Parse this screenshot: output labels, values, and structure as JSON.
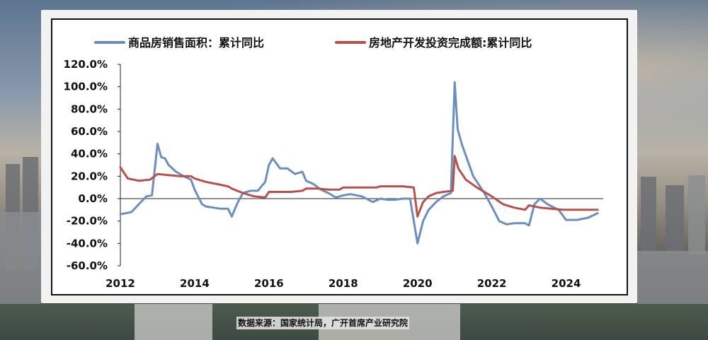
{
  "chart_data": {
    "type": "line",
    "title": "",
    "xlabel": "",
    "ylabel": "",
    "ylim": [
      -60,
      120
    ],
    "xlim": [
      2012,
      2025
    ],
    "y_ticks": [
      "120.0%",
      "100.0%",
      "80.0%",
      "60.0%",
      "40.0%",
      "20.0%",
      "0.0%",
      "-20.0%",
      "-40.0%",
      "-60.0%"
    ],
    "y_tick_values": [
      120,
      100,
      80,
      60,
      40,
      20,
      0,
      -20,
      -40,
      -60
    ],
    "x_ticks": [
      "2012",
      "2014",
      "2016",
      "2018",
      "2020",
      "2022",
      "2024"
    ],
    "x_tick_values": [
      2012,
      2014,
      2016,
      2018,
      2020,
      2022,
      2024
    ],
    "legend_position": "top",
    "zero_line": true,
    "series": [
      {
        "name": "商品房销售面积：累计同比",
        "color": "#6a8fbf",
        "x": [
          2012.0,
          2012.3,
          2012.5,
          2012.7,
          2012.85,
          2013.0,
          2013.1,
          2013.2,
          2013.3,
          2013.5,
          2013.7,
          2013.9,
          2014.0,
          2014.2,
          2014.3,
          2014.5,
          2014.7,
          2014.9,
          2015.0,
          2015.15,
          2015.3,
          2015.5,
          2015.7,
          2015.9,
          2016.0,
          2016.1,
          2016.3,
          2016.5,
          2016.7,
          2016.9,
          2017.0,
          2017.2,
          2017.4,
          2017.6,
          2017.8,
          2018.0,
          2018.2,
          2018.5,
          2018.8,
          2019.0,
          2019.2,
          2019.4,
          2019.6,
          2019.8,
          2020.0,
          2020.15,
          2020.3,
          2020.5,
          2020.7,
          2020.9,
          2021.0,
          2021.08,
          2021.2,
          2021.5,
          2021.8,
          2022.0,
          2022.2,
          2022.4,
          2022.6,
          2022.9,
          2023.0,
          2023.15,
          2023.3,
          2023.5,
          2023.8,
          2024.0,
          2024.3,
          2024.6,
          2024.85
        ],
        "values": [
          -14,
          -12,
          -5,
          2,
          3,
          49,
          37,
          36,
          30,
          24,
          20,
          17,
          8,
          -5,
          -7,
          -8,
          -9,
          -9,
          -16,
          -4,
          5,
          7,
          7,
          15,
          30,
          36,
          27,
          27,
          22,
          24,
          16,
          13,
          8,
          5,
          1,
          3,
          4,
          2,
          -3,
          0,
          -1,
          -1,
          0,
          0,
          -40,
          -20,
          -10,
          -3,
          2,
          5,
          104,
          62,
          48,
          20,
          5,
          -7,
          -20,
          -23,
          -22,
          -22,
          -24,
          -5,
          0,
          -5,
          -10,
          -19,
          -19,
          -17,
          -13
        ]
      },
      {
        "name": "房地产开发投资完成额:累计同比",
        "color": "#b8514c",
        "x": [
          2012.0,
          2012.2,
          2012.5,
          2012.8,
          2013.0,
          2013.3,
          2013.6,
          2013.9,
          2014.0,
          2014.3,
          2014.6,
          2014.9,
          2015.0,
          2015.3,
          2015.6,
          2015.9,
          2016.0,
          2016.3,
          2016.6,
          2016.9,
          2017.0,
          2017.3,
          2017.6,
          2017.9,
          2018.0,
          2018.3,
          2018.6,
          2018.9,
          2019.0,
          2019.3,
          2019.6,
          2019.9,
          2020.0,
          2020.15,
          2020.3,
          2020.5,
          2020.7,
          2020.95,
          2021.0,
          2021.1,
          2021.3,
          2021.6,
          2021.9,
          2022.0,
          2022.3,
          2022.6,
          2022.9,
          2023.0,
          2023.3,
          2023.6,
          2023.9,
          2024.0,
          2024.3,
          2024.6,
          2024.85
        ],
        "values": [
          28,
          18,
          16,
          17,
          22,
          21,
          20,
          20,
          18,
          15,
          13,
          11,
          9,
          5,
          2,
          1,
          6,
          6,
          6,
          7,
          9,
          9,
          8,
          8,
          10,
          10,
          10,
          10,
          11,
          11,
          11,
          10,
          -16,
          -3,
          2,
          5,
          6,
          7,
          38,
          27,
          17,
          10,
          4,
          2,
          -5,
          -8,
          -10,
          -6,
          -8,
          -9,
          -10,
          -10,
          -10,
          -10,
          -10
        ]
      }
    ]
  },
  "source_note": "数据来源：国家统计局，广开首席产业研究院"
}
